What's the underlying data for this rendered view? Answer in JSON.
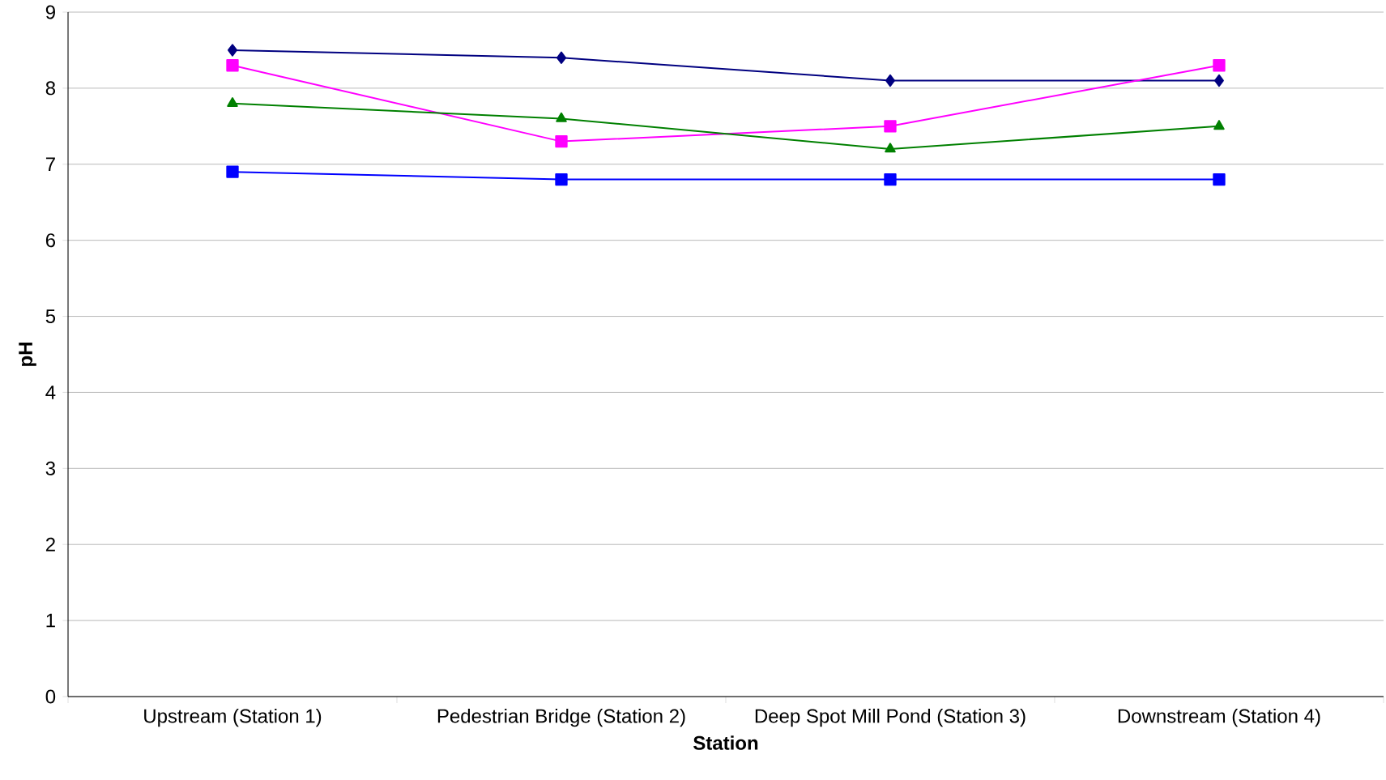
{
  "chart_data": {
    "type": "line",
    "xlabel": "Station",
    "ylabel": "pH",
    "categories": [
      "Upstream (Station 1)",
      "Pedestrian Bridge (Station 2)",
      "Deep Spot Mill Pond (Station 3)",
      "Downstream (Station 4)"
    ],
    "series": [
      {
        "color": "#000080",
        "marker": "diamond",
        "values": [
          8.5,
          8.4,
          8.1,
          8.1
        ]
      },
      {
        "color": "#ff00ff",
        "marker": "square",
        "values": [
          8.3,
          7.3,
          7.5,
          8.3
        ]
      },
      {
        "color": "#008000",
        "marker": "triangle",
        "values": [
          7.8,
          7.6,
          7.2,
          7.5
        ]
      },
      {
        "color": "#0000ff",
        "marker": "square",
        "values": [
          6.9,
          6.8,
          6.8,
          6.8
        ]
      }
    ],
    "ylim": [
      0,
      9
    ],
    "yticks": [
      0,
      1,
      2,
      3,
      4,
      5,
      6,
      7,
      8,
      9
    ],
    "grid": "y",
    "line_style": "solid"
  }
}
